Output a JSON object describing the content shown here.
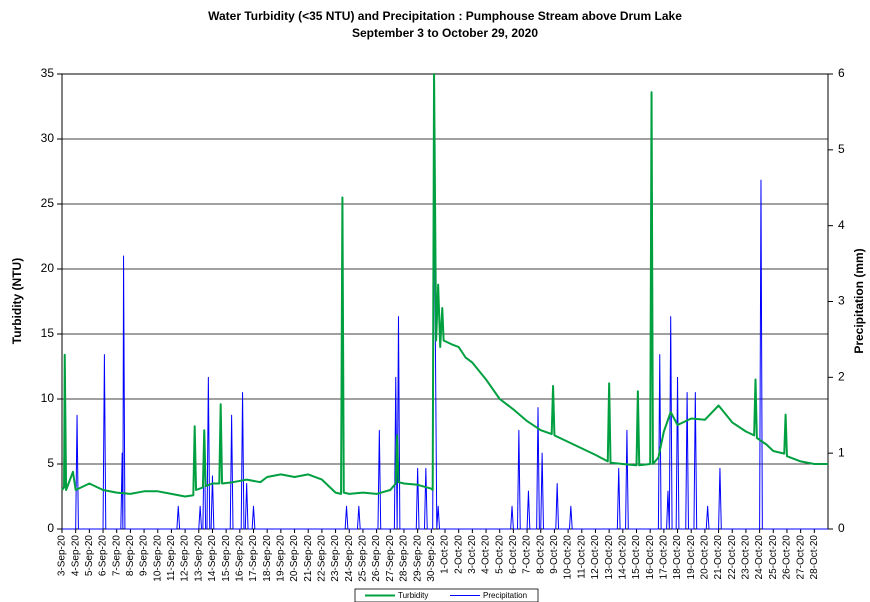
{
  "chart_data": {
    "type": "line",
    "title": "Water Turbidity (<35 NTU) and Precipitation : Pumphouse Stream above Drum Lake",
    "subtitle": "September 3 to October 29, 2020",
    "y_label": "Turbidity (NTU)",
    "y2_label": "Precipitation (mm)",
    "xlim": [
      0,
      56
    ],
    "xticks": [
      {
        "value": 0,
        "label": "3-Sep-20"
      },
      {
        "value": 1,
        "label": "4-Sep-20"
      },
      {
        "value": 2,
        "label": "5-Sep-20"
      },
      {
        "value": 3,
        "label": "6-Sep-20"
      },
      {
        "value": 4,
        "label": "7-Sep-20"
      },
      {
        "value": 5,
        "label": "8-Sep-20"
      },
      {
        "value": 6,
        "label": "9-Sep-20"
      },
      {
        "value": 7,
        "label": "10-Sep-20"
      },
      {
        "value": 8,
        "label": "11-Sep-20"
      },
      {
        "value": 9,
        "label": "12-Sep-20"
      },
      {
        "value": 10,
        "label": "13-Sep-20"
      },
      {
        "value": 11,
        "label": "14-Sep-20"
      },
      {
        "value": 12,
        "label": "15-Sep-20"
      },
      {
        "value": 13,
        "label": "16-Sep-20"
      },
      {
        "value": 14,
        "label": "17-Sep-20"
      },
      {
        "value": 15,
        "label": "18-Sep-20"
      },
      {
        "value": 16,
        "label": "19-Sep-20"
      },
      {
        "value": 17,
        "label": "20-Sep-20"
      },
      {
        "value": 18,
        "label": "21-Sep-20"
      },
      {
        "value": 19,
        "label": "22-Sep-20"
      },
      {
        "value": 20,
        "label": "23-Sep-20"
      },
      {
        "value": 21,
        "label": "24-Sep-20"
      },
      {
        "value": 22,
        "label": "25-Sep-20"
      },
      {
        "value": 23,
        "label": "26-Sep-20"
      },
      {
        "value": 24,
        "label": "27-Sep-20"
      },
      {
        "value": 25,
        "label": "28-Sep-20"
      },
      {
        "value": 26,
        "label": "29-Sep-20"
      },
      {
        "value": 27,
        "label": "30-Sep-20"
      },
      {
        "value": 28,
        "label": "1-Oct-20"
      },
      {
        "value": 29,
        "label": "2-Oct-20"
      },
      {
        "value": 30,
        "label": "3-Oct-20"
      },
      {
        "value": 31,
        "label": "4-Oct-20"
      },
      {
        "value": 32,
        "label": "5-Oct-20"
      },
      {
        "value": 33,
        "label": "6-Oct-20"
      },
      {
        "value": 34,
        "label": "7-Oct-20"
      },
      {
        "value": 35,
        "label": "8-Oct-20"
      },
      {
        "value": 36,
        "label": "9-Oct-20"
      },
      {
        "value": 37,
        "label": "10-Oct-20"
      },
      {
        "value": 38,
        "label": "11-Oct-20"
      },
      {
        "value": 39,
        "label": "12-Oct-20"
      },
      {
        "value": 40,
        "label": "13-Oct-20"
      },
      {
        "value": 41,
        "label": "14-Oct-20"
      },
      {
        "value": 42,
        "label": "15-Oct-20"
      },
      {
        "value": 43,
        "label": "16-Oct-20"
      },
      {
        "value": 44,
        "label": "17-Oct-20"
      },
      {
        "value": 45,
        "label": "18-Oct-20"
      },
      {
        "value": 46,
        "label": "19-Oct-20"
      },
      {
        "value": 47,
        "label": "20-Oct-20"
      },
      {
        "value": 48,
        "label": "21-Oct-20"
      },
      {
        "value": 49,
        "label": "22-Oct-20"
      },
      {
        "value": 50,
        "label": "23-Oct-20"
      },
      {
        "value": 51,
        "label": "24-Oct-20"
      },
      {
        "value": 52,
        "label": "25-Oct-20"
      },
      {
        "value": 53,
        "label": "26-Oct-20"
      },
      {
        "value": 54,
        "label": "27-Oct-20"
      },
      {
        "value": 55,
        "label": "28-Oct-20"
      }
    ],
    "ylim": [
      0,
      35
    ],
    "yticks": [
      0,
      5,
      10,
      15,
      20,
      25,
      30,
      35
    ],
    "y2lim": [
      0,
      6
    ],
    "y2ticks": [
      0,
      1,
      2,
      3,
      4,
      5,
      6
    ],
    "grid": true,
    "legend": "bottom",
    "series": [
      {
        "name": "Turbidity",
        "color": "#00a040",
        "axis": "y",
        "x": [
          0,
          0.15,
          0.2,
          0.3,
          0.8,
          1.0,
          2.0,
          3.0,
          4.0,
          5.0,
          6.0,
          7.0,
          8.0,
          9.0,
          9.6,
          9.7,
          9.8,
          10.3,
          10.4,
          10.5,
          11.0,
          11.5,
          11.6,
          11.7,
          12.5,
          13.5,
          14.5,
          15.0,
          16.0,
          17.0,
          18.0,
          19.0,
          20.0,
          20.4,
          20.5,
          20.6,
          21.0,
          22.0,
          23.0,
          24.0,
          24.4,
          24.5,
          24.6,
          25.0,
          26.0,
          27.0,
          27.1,
          27.2,
          27.35,
          27.5,
          27.65,
          27.8,
          27.9,
          28.5,
          29.0,
          29.5,
          30.0,
          31.0,
          32.0,
          33.0,
          34.0,
          35.0,
          35.8,
          35.9,
          36.0,
          37.0,
          38.0,
          39.0,
          39.9,
          40.0,
          40.1,
          41.0,
          42.0,
          42.1,
          42.2,
          43.0,
          43.1,
          43.2,
          43.6,
          44.0,
          44.5,
          45.0,
          46.0,
          47.0,
          48.0,
          49.0,
          50.0,
          50.6,
          50.7,
          50.8,
          51.5,
          52.0,
          52.8,
          52.9,
          53.0,
          54.0,
          55.0,
          56.0
        ],
        "values": [
          3.0,
          3.2,
          13.4,
          3.0,
          4.4,
          3.0,
          3.5,
          3.0,
          2.8,
          2.7,
          2.9,
          2.9,
          2.7,
          2.5,
          2.6,
          7.9,
          3.0,
          3.2,
          7.6,
          3.3,
          3.5,
          3.5,
          9.6,
          3.5,
          3.6,
          3.8,
          3.6,
          4.0,
          4.2,
          4.0,
          4.2,
          3.8,
          2.8,
          2.7,
          25.5,
          2.8,
          2.7,
          2.8,
          2.7,
          3.0,
          3.5,
          7.2,
          3.6,
          3.5,
          3.4,
          3.1,
          3.0,
          35,
          14.5,
          18.8,
          14,
          17,
          14.5,
          14.2,
          14,
          13.2,
          12.8,
          11.5,
          10,
          9.2,
          8.3,
          7.6,
          7.3,
          11.0,
          7.2,
          6.7,
          6.2,
          5.7,
          5.2,
          11.2,
          5.1,
          5.0,
          4.9,
          10.6,
          4.9,
          5.0,
          33.6,
          5.0,
          5.5,
          7.5,
          9.0,
          8.0,
          8.5,
          8.4,
          9.5,
          8.2,
          7.5,
          7.2,
          11.5,
          7.0,
          6.5,
          6.0,
          5.8,
          8.8,
          5.6,
          5.2,
          5.0,
          5.0
        ]
      },
      {
        "name": "Precipitation",
        "color": "#0000ff",
        "axis": "y2",
        "x": [
          0,
          1.0,
          1.1,
          1.2,
          3.0,
          3.1,
          3.2,
          4.3,
          4.4,
          4.45,
          4.5,
          4.6,
          8.4,
          8.5,
          8.6,
          10.0,
          10.1,
          10.2,
          10.3,
          10.4,
          10.5,
          10.6,
          10.7,
          10.8,
          10.9,
          11.0,
          11.1,
          12.3,
          12.4,
          12.5,
          13.1,
          13.2,
          13.3,
          13.4,
          13.5,
          13.6,
          13.9,
          14.0,
          14.1,
          20.7,
          20.8,
          20.9,
          21.6,
          21.7,
          21.8,
          23.1,
          23.2,
          23.3,
          24.3,
          24.4,
          24.5,
          24.6,
          24.7,
          25.9,
          26.0,
          26.1,
          26.5,
          26.6,
          26.7,
          27.1,
          27.2,
          27.4,
          27.5,
          27.6,
          32.8,
          32.9,
          33.0,
          33.3,
          33.4,
          33.5,
          34.0,
          34.1,
          34.2,
          34.7,
          34.8,
          34.9,
          35.0,
          35.1,
          35.2,
          36.1,
          36.2,
          36.3,
          37.1,
          37.2,
          37.3,
          40.6,
          40.7,
          40.8,
          41.2,
          41.3,
          41.4,
          43.6,
          43.7,
          43.8,
          44.2,
          44.3,
          44.4,
          44.5,
          44.6,
          44.9,
          45.0,
          45.1,
          45.6,
          45.7,
          45.8,
          46.2,
          46.3,
          46.4,
          47.1,
          47.2,
          47.3,
          48.0,
          48.1,
          48.2,
          51.0,
          51.1,
          51.2,
          56
        ],
        "values": [
          0,
          0,
          1.5,
          0,
          0,
          2.3,
          0,
          0,
          1.0,
          0,
          3.6,
          0,
          0,
          0.3,
          0,
          0,
          0.3,
          0,
          0,
          1.3,
          0,
          0,
          2.0,
          0,
          0,
          0.7,
          0,
          0,
          1.5,
          0,
          0,
          1.8,
          0,
          0,
          0.6,
          0,
          0,
          0.3,
          0,
          0,
          0.3,
          0,
          0,
          0.3,
          0,
          0,
          1.3,
          0,
          0,
          2.0,
          0,
          2.8,
          0,
          0,
          0.8,
          0,
          0,
          0.8,
          0,
          0,
          4.8,
          0,
          0.3,
          0,
          0,
          0.3,
          0,
          0,
          1.3,
          0,
          0,
          0.5,
          0,
          0,
          1.6,
          0,
          0,
          1.0,
          0,
          0,
          0.6,
          0,
          0,
          0.3,
          0,
          0,
          0.8,
          0,
          0,
          1.3,
          0,
          0,
          2.3,
          0,
          0,
          0.5,
          0,
          2.8,
          0,
          0,
          2.0,
          0,
          0,
          1.8,
          0,
          0,
          1.8,
          0,
          0,
          0.3,
          0,
          0,
          0.8,
          0,
          0,
          4.6,
          0,
          0
        ]
      }
    ]
  }
}
